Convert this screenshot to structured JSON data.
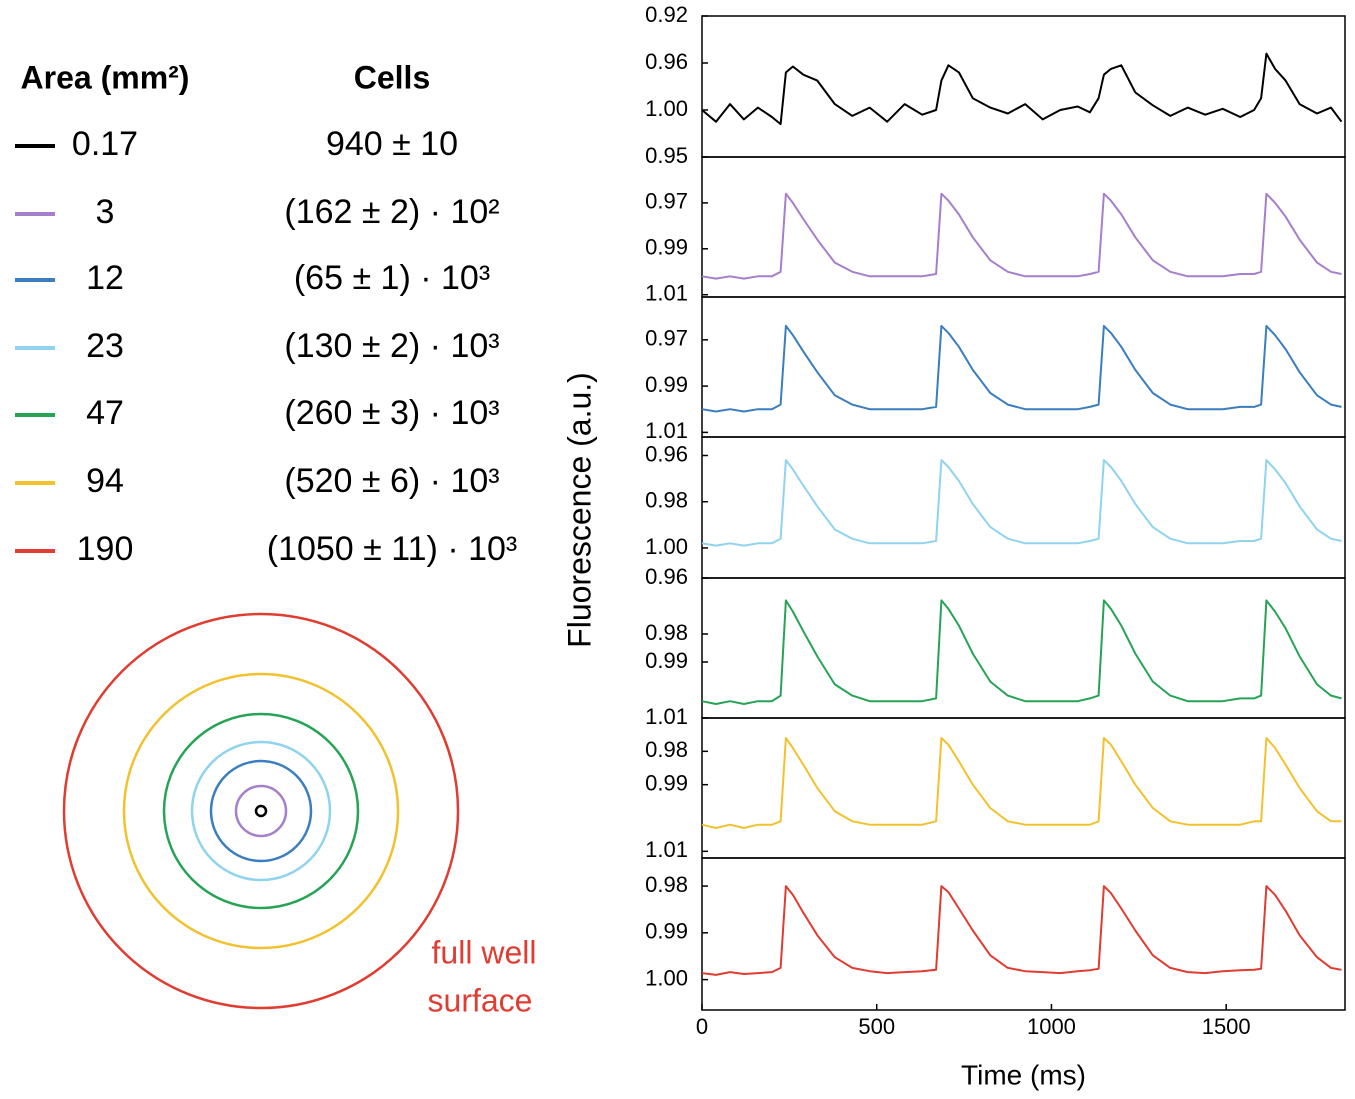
{
  "legend": {
    "headers": [
      "Area (mm²)",
      "Cells"
    ],
    "rows": [
      {
        "area": "0.17",
        "cells": "940 ± 10"
      },
      {
        "area": "3",
        "cells": "(162 ± 2) · 10²"
      },
      {
        "area": "12",
        "cells": "(65 ± 1) · 10³"
      },
      {
        "area": "23",
        "cells": "(130 ± 2) · 10³"
      },
      {
        "area": "47",
        "cells": "(260 ± 3) · 10³"
      },
      {
        "area": "94",
        "cells": "(520 ± 6) · 10³"
      },
      {
        "area": "190",
        "cells": "(1050 ± 11) · 10³"
      }
    ]
  },
  "annotation": [
    "full well",
    "surface"
  ],
  "y_axis_label": "Fluorescence (a.u.)",
  "chart_data": [
    {
      "type": "line",
      "color": "#000000",
      "y_inverted": true,
      "xlim": [
        0,
        1840
      ],
      "ylim": [
        0.92,
        1.04
      ],
      "yticks": [
        0.92,
        0.96,
        {
          "value": 1.0,
          "label": "1.00"
        }
      ],
      "x": [
        0,
        40,
        80,
        120,
        160,
        200,
        225,
        240,
        260,
        290,
        330,
        380,
        430,
        480,
        530,
        580,
        630,
        670,
        685,
        705,
        735,
        775,
        825,
        875,
        925,
        975,
        1025,
        1075,
        1110,
        1135,
        1150,
        1170,
        1200,
        1240,
        1290,
        1340,
        1390,
        1440,
        1490,
        1540,
        1580,
        1600,
        1615,
        1640,
        1670,
        1710,
        1760,
        1800,
        1830
      ],
      "values": [
        1.0,
        1.01,
        0.995,
        1.008,
        0.998,
        1.006,
        1.012,
        0.968,
        0.963,
        0.97,
        0.975,
        0.995,
        1.005,
        0.998,
        1.01,
        0.995,
        1.004,
        1.0,
        0.975,
        0.962,
        0.968,
        0.99,
        0.998,
        1.003,
        0.995,
        1.008,
        1.0,
        0.997,
        1.002,
        0.99,
        0.97,
        0.965,
        0.962,
        0.985,
        0.996,
        1.005,
        0.998,
        1.004,
        0.999,
        1.006,
        1.0,
        0.99,
        0.952,
        0.965,
        0.975,
        0.995,
        1.003,
        0.998,
        1.01
      ]
    },
    {
      "type": "line",
      "color": "#a57fcc",
      "y_inverted": true,
      "xlim": [
        0,
        1840
      ],
      "ylim": [
        0.95,
        1.011
      ],
      "yticks": [
        0.95,
        0.97,
        0.99,
        1.01
      ],
      "x": [
        0,
        40,
        80,
        120,
        160,
        200,
        225,
        240,
        260,
        290,
        330,
        380,
        430,
        480,
        530,
        580,
        630,
        670,
        685,
        705,
        735,
        775,
        825,
        875,
        925,
        975,
        1025,
        1075,
        1110,
        1135,
        1150,
        1170,
        1200,
        1240,
        1290,
        1340,
        1390,
        1440,
        1490,
        1540,
        1580,
        1600,
        1615,
        1640,
        1670,
        1710,
        1760,
        1800,
        1830
      ],
      "values": [
        1.002,
        1.003,
        1.002,
        1.003,
        1.002,
        1.002,
        1.0,
        0.966,
        0.97,
        0.977,
        0.986,
        0.996,
        1.0,
        1.002,
        1.002,
        1.002,
        1.002,
        1.001,
        0.966,
        0.969,
        0.975,
        0.985,
        0.995,
        1.0,
        1.002,
        1.002,
        1.002,
        1.002,
        1.001,
        1.0,
        0.966,
        0.969,
        0.975,
        0.985,
        0.995,
        1.0,
        1.002,
        1.002,
        1.002,
        1.001,
        1.001,
        1.0,
        0.966,
        0.97,
        0.976,
        0.986,
        0.996,
        1.0,
        1.001
      ]
    },
    {
      "type": "line",
      "color": "#3a7ebf",
      "y_inverted": true,
      "xlim": [
        0,
        1840
      ],
      "ylim": [
        0.9515,
        1.012
      ],
      "yticks": [
        0.97,
        0.99,
        1.01
      ],
      "x": [
        0,
        40,
        80,
        120,
        160,
        200,
        225,
        240,
        260,
        290,
        330,
        380,
        430,
        480,
        530,
        580,
        630,
        670,
        685,
        705,
        735,
        775,
        825,
        875,
        925,
        975,
        1025,
        1075,
        1110,
        1135,
        1150,
        1170,
        1200,
        1240,
        1290,
        1340,
        1390,
        1440,
        1490,
        1540,
        1580,
        1600,
        1615,
        1640,
        1670,
        1710,
        1760,
        1800,
        1830
      ],
      "values": [
        1.0,
        1.001,
        1.0,
        1.001,
        1.0,
        1.0,
        0.998,
        0.964,
        0.968,
        0.975,
        0.984,
        0.994,
        0.998,
        1.0,
        1.0,
        1.0,
        1.0,
        0.999,
        0.964,
        0.967,
        0.973,
        0.983,
        0.993,
        0.998,
        1.0,
        1.0,
        1.0,
        1.0,
        0.999,
        0.998,
        0.964,
        0.967,
        0.973,
        0.983,
        0.993,
        0.998,
        1.0,
        1.0,
        1.0,
        0.999,
        0.999,
        0.998,
        0.964,
        0.968,
        0.974,
        0.984,
        0.994,
        0.998,
        0.999
      ]
    },
    {
      "type": "line",
      "color": "#8fd3ef",
      "y_inverted": true,
      "xlim": [
        0,
        1840
      ],
      "ylim": [
        0.952,
        1.013
      ],
      "yticks": [
        0.96,
        0.98,
        {
          "value": 1.0,
          "label": "1.00"
        }
      ],
      "x": [
        0,
        40,
        80,
        120,
        160,
        200,
        225,
        240,
        260,
        290,
        330,
        380,
        430,
        480,
        530,
        580,
        630,
        670,
        685,
        705,
        735,
        775,
        825,
        875,
        925,
        975,
        1025,
        1075,
        1110,
        1135,
        1150,
        1170,
        1200,
        1240,
        1290,
        1340,
        1390,
        1440,
        1490,
        1540,
        1580,
        1600,
        1615,
        1640,
        1670,
        1710,
        1760,
        1800,
        1830
      ],
      "values": [
        0.998,
        0.999,
        0.998,
        0.999,
        0.998,
        0.998,
        0.996,
        0.962,
        0.966,
        0.973,
        0.982,
        0.992,
        0.996,
        0.998,
        0.998,
        0.998,
        0.998,
        0.997,
        0.962,
        0.965,
        0.971,
        0.981,
        0.991,
        0.996,
        0.998,
        0.998,
        0.998,
        0.998,
        0.997,
        0.996,
        0.962,
        0.965,
        0.971,
        0.981,
        0.991,
        0.996,
        0.998,
        0.998,
        0.998,
        0.997,
        0.997,
        0.996,
        0.962,
        0.966,
        0.972,
        0.982,
        0.992,
        0.996,
        0.997
      ]
    },
    {
      "type": "line",
      "color": "#27a356",
      "y_inverted": true,
      "xlim": [
        0,
        1840
      ],
      "ylim": [
        0.96,
        1.01
      ],
      "yticks": [
        0.96,
        0.98,
        0.99,
        1.01
      ],
      "x": [
        0,
        40,
        80,
        120,
        160,
        200,
        225,
        240,
        260,
        290,
        330,
        380,
        430,
        480,
        530,
        580,
        630,
        670,
        685,
        705,
        735,
        775,
        825,
        875,
        925,
        975,
        1025,
        1075,
        1110,
        1135,
        1150,
        1170,
        1200,
        1240,
        1290,
        1340,
        1390,
        1440,
        1490,
        1540,
        1580,
        1600,
        1615,
        1640,
        1670,
        1710,
        1760,
        1800,
        1830
      ],
      "values": [
        1.004,
        1.005,
        1.004,
        1.005,
        1.004,
        1.004,
        1.002,
        0.968,
        0.972,
        0.979,
        0.988,
        0.998,
        1.002,
        1.004,
        1.004,
        1.004,
        1.004,
        1.003,
        0.968,
        0.971,
        0.977,
        0.987,
        0.997,
        1.002,
        1.004,
        1.004,
        1.004,
        1.004,
        1.003,
        1.002,
        0.968,
        0.971,
        0.977,
        0.987,
        0.997,
        1.002,
        1.004,
        1.004,
        1.004,
        1.003,
        1.003,
        1.002,
        0.968,
        0.972,
        0.978,
        0.988,
        0.998,
        1.002,
        1.003
      ]
    },
    {
      "type": "line",
      "color": "#f2c12e",
      "y_inverted": true,
      "xlim": [
        0,
        1840
      ],
      "ylim": [
        0.97,
        1.012
      ],
      "yticks": [
        0.98,
        0.99,
        1.01
      ],
      "x": [
        0,
        40,
        80,
        120,
        160,
        200,
        225,
        240,
        260,
        290,
        330,
        380,
        430,
        480,
        530,
        580,
        630,
        670,
        685,
        705,
        735,
        775,
        825,
        875,
        925,
        975,
        1025,
        1075,
        1110,
        1135,
        1150,
        1170,
        1200,
        1240,
        1290,
        1340,
        1390,
        1440,
        1490,
        1540,
        1580,
        1600,
        1615,
        1640,
        1670,
        1710,
        1760,
        1800,
        1830
      ],
      "values": [
        1.002,
        1.003,
        1.002,
        1.003,
        1.002,
        1.002,
        1.001,
        0.976,
        0.979,
        0.984,
        0.991,
        0.998,
        1.001,
        1.002,
        1.002,
        1.002,
        1.002,
        1.001,
        0.976,
        0.978,
        0.983,
        0.99,
        0.997,
        1.001,
        1.002,
        1.002,
        1.002,
        1.002,
        1.002,
        1.001,
        0.976,
        0.978,
        0.983,
        0.99,
        0.997,
        1.001,
        1.002,
        1.002,
        1.002,
        1.002,
        1.001,
        1.001,
        0.976,
        0.979,
        0.984,
        0.991,
        0.998,
        1.001,
        1.001
      ]
    },
    {
      "type": "line",
      "color": "#e03c31",
      "y_inverted": true,
      "xlim": [
        0,
        1840
      ],
      "ylim": [
        0.974,
        1.0065
      ],
      "yticks": [
        0.98,
        0.99,
        {
          "value": 1.0,
          "label": "1.00"
        }
      ],
      "xticks": [
        0,
        500,
        1000,
        1500
      ],
      "xlabel": "Time (ms)",
      "x": [
        0,
        40,
        80,
        120,
        160,
        200,
        225,
        240,
        260,
        290,
        330,
        380,
        430,
        480,
        530,
        580,
        630,
        670,
        685,
        705,
        735,
        775,
        825,
        875,
        925,
        975,
        1025,
        1075,
        1110,
        1135,
        1150,
        1170,
        1200,
        1240,
        1290,
        1340,
        1390,
        1440,
        1490,
        1540,
        1580,
        1600,
        1615,
        1640,
        1670,
        1710,
        1760,
        1800,
        1830
      ],
      "values": [
        0.9986,
        0.999,
        0.9984,
        0.9988,
        0.9986,
        0.9984,
        0.9975,
        0.98,
        0.9819,
        0.9857,
        0.9905,
        0.9952,
        0.9975,
        0.9982,
        0.9986,
        0.9984,
        0.9982,
        0.9979,
        0.98,
        0.9813,
        0.9848,
        0.9895,
        0.9948,
        0.9975,
        0.9982,
        0.9984,
        0.9986,
        0.9982,
        0.998,
        0.9977,
        0.98,
        0.9815,
        0.9848,
        0.9895,
        0.9948,
        0.9975,
        0.9984,
        0.9986,
        0.9982,
        0.998,
        0.9979,
        0.9977,
        0.98,
        0.9819,
        0.9853,
        0.9905,
        0.9952,
        0.9975,
        0.9979
      ]
    }
  ]
}
